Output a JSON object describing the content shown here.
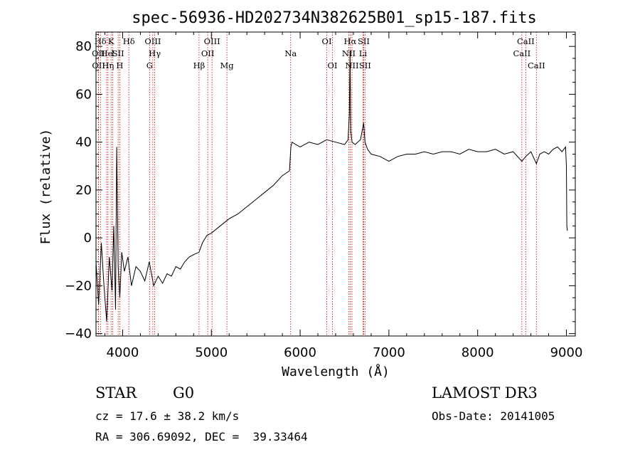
{
  "chart_data": {
    "type": "line",
    "title": "spec-56936-HD202734N382625B01_sp15-187.fits",
    "xlabel": "Wavelength (Å)",
    "ylabel": "Flux (relative)",
    "xlim": [
      3700,
      9100
    ],
    "ylim": [
      -41,
      86
    ],
    "xticks": [
      4000,
      5000,
      6000,
      7000,
      8000,
      9000
    ],
    "yticks": [
      -40,
      -20,
      0,
      20,
      40,
      60,
      80
    ],
    "grid": false,
    "line_color": "#000000",
    "marker_color": "#cc0000",
    "series": [
      {
        "x": [
          3700,
          3730,
          3760,
          3790,
          3820,
          3850,
          3880,
          3900,
          3920,
          3933,
          3950,
          3968,
          3990,
          4020,
          4060,
          4100,
          4150,
          4200,
          4250,
          4300,
          4350,
          4400,
          4450,
          4500,
          4550,
          4600,
          4650,
          4700,
          4750,
          4800,
          4861,
          4900,
          4950,
          5000,
          5100,
          5200,
          5300,
          5400,
          5500,
          5600,
          5700,
          5800,
          5880,
          5895,
          5910,
          5950,
          6000,
          6100,
          6200,
          6300,
          6400,
          6500,
          6540,
          6555,
          6563,
          6570,
          6585,
          6620,
          6680,
          6716,
          6731,
          6760,
          6800,
          6900,
          7000,
          7100,
          7200,
          7300,
          7400,
          7500,
          7600,
          7700,
          7800,
          7900,
          8000,
          8100,
          8200,
          8300,
          8400,
          8498,
          8542,
          8600,
          8662,
          8700,
          8750,
          8800,
          8850,
          8900,
          8950,
          8990,
          9000,
          9005,
          9010
        ],
        "y": [
          -10,
          -28,
          -2,
          -20,
          -35,
          -8,
          -22,
          5,
          -30,
          38,
          -12,
          -25,
          -6,
          -14,
          -8,
          -20,
          -12,
          -14,
          -18,
          -10,
          -20,
          -16,
          -19,
          -15,
          -16,
          -12,
          -13,
          -10,
          -8,
          -7,
          -6,
          -2,
          1,
          2,
          5,
          8,
          10,
          13,
          16,
          19,
          22,
          26,
          28,
          38,
          40,
          39,
          38,
          40,
          39,
          41,
          40,
          39,
          41,
          52,
          78,
          45,
          40,
          39,
          41,
          48,
          40,
          37,
          35,
          34,
          32,
          34,
          35,
          35,
          36,
          35,
          36,
          36,
          35,
          37,
          36,
          36,
          37,
          35,
          36,
          32,
          34,
          36,
          31,
          35,
          36,
          35,
          37,
          38,
          36,
          38,
          30,
          5,
          3
        ]
      }
    ],
    "emission_lines": [
      {
        "label": "Hδ",
        "wavelength": 3750,
        "row": 1
      },
      {
        "label": "OII",
        "wavelength": 3727,
        "row": 2
      },
      {
        "label": "OII",
        "wavelength": 3729,
        "row": 3
      },
      {
        "label": "He",
        "wavelength": 3820,
        "row": 2
      },
      {
        "label": "Hη",
        "wavelength": 3835,
        "row": 3
      },
      {
        "label": "K",
        "wavelength": 3870,
        "row": 1
      },
      {
        "label": "I",
        "wavelength": 3889,
        "row": 2
      },
      {
        "label": "H",
        "wavelength": 3968,
        "row": 3
      },
      {
        "label": "SII",
        "wavelength": 3950,
        "row": 2
      },
      {
        "label": "Hδ",
        "wavelength": 4070,
        "row": 1
      },
      {
        "label": "OIII",
        "wavelength": 4340,
        "row": 1
      },
      {
        "label": "Hγ",
        "wavelength": 4362,
        "row": 2
      },
      {
        "label": "G",
        "wavelength": 4304,
        "row": 3
      },
      {
        "label": "OIII",
        "wavelength": 5007,
        "row": 1
      },
      {
        "label": "OII",
        "wavelength": 4959,
        "row": 2
      },
      {
        "label": "Hβ",
        "wavelength": 4861,
        "row": 3
      },
      {
        "label": "Mg",
        "wavelength": 5175,
        "row": 3
      },
      {
        "label": "Na",
        "wavelength": 5893,
        "row": 2
      },
      {
        "label": "OI",
        "wavelength": 6300,
        "row": 1
      },
      {
        "label": "OI",
        "wavelength": 6364,
        "row": 3
      },
      {
        "label": "Hα",
        "wavelength": 6563,
        "row": 1
      },
      {
        "label": "NII",
        "wavelength": 6548,
        "row": 2
      },
      {
        "label": "NII",
        "wavelength": 6584,
        "row": 3
      },
      {
        "label": "SII",
        "wavelength": 6716,
        "row": 1
      },
      {
        "label": "Li",
        "wavelength": 6708,
        "row": 2
      },
      {
        "label": "SII",
        "wavelength": 6731,
        "row": 3
      },
      {
        "label": "CaII",
        "wavelength": 8542,
        "row": 1
      },
      {
        "label": "CaII",
        "wavelength": 8498,
        "row": 2
      },
      {
        "label": "CaII",
        "wavelength": 8662,
        "row": 3
      }
    ]
  },
  "info": {
    "class": "STAR",
    "subclass": "G0",
    "survey": "LAMOST DR3",
    "cz": "cz = 17.6 ± 38.2 km/s",
    "obs_date": "Obs-Date: 20141005",
    "coords": "RA = 306.69092, DEC =  39.33464"
  }
}
